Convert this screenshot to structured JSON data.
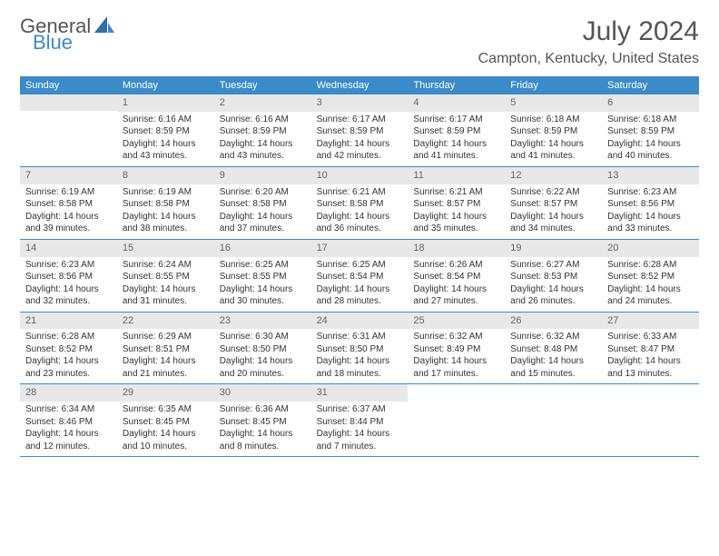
{
  "brand": {
    "w1": "General",
    "w2": "Blue"
  },
  "colors": {
    "header_bg": "#3b8bc9",
    "header_text": "#ffffff",
    "daynum_bg": "#e8e8e8",
    "daynum_text": "#666666",
    "body_text": "#333333",
    "title_text": "#555555",
    "row_border": "#3b8bc9",
    "page_bg": "#ffffff"
  },
  "typography": {
    "title_pt": 30,
    "location_pt": 16,
    "weekday_pt": 11,
    "daynum_pt": 11,
    "body_pt": 10
  },
  "title": "July 2024",
  "location": "Campton, Kentucky, United States",
  "weekdays": [
    "Sunday",
    "Monday",
    "Tuesday",
    "Wednesday",
    "Thursday",
    "Friday",
    "Saturday"
  ],
  "layout": {
    "cols": 7,
    "rows": 5,
    "first_day_col": 1,
    "days_in_month": 31
  },
  "days": [
    {
      "n": "1",
      "sr": "Sunrise: 6:16 AM",
      "ss": "Sunset: 8:59 PM",
      "dl": "Daylight: 14 hours and 43 minutes."
    },
    {
      "n": "2",
      "sr": "Sunrise: 6:16 AM",
      "ss": "Sunset: 8:59 PM",
      "dl": "Daylight: 14 hours and 43 minutes."
    },
    {
      "n": "3",
      "sr": "Sunrise: 6:17 AM",
      "ss": "Sunset: 8:59 PM",
      "dl": "Daylight: 14 hours and 42 minutes."
    },
    {
      "n": "4",
      "sr": "Sunrise: 6:17 AM",
      "ss": "Sunset: 8:59 PM",
      "dl": "Daylight: 14 hours and 41 minutes."
    },
    {
      "n": "5",
      "sr": "Sunrise: 6:18 AM",
      "ss": "Sunset: 8:59 PM",
      "dl": "Daylight: 14 hours and 41 minutes."
    },
    {
      "n": "6",
      "sr": "Sunrise: 6:18 AM",
      "ss": "Sunset: 8:59 PM",
      "dl": "Daylight: 14 hours and 40 minutes."
    },
    {
      "n": "7",
      "sr": "Sunrise: 6:19 AM",
      "ss": "Sunset: 8:58 PM",
      "dl": "Daylight: 14 hours and 39 minutes."
    },
    {
      "n": "8",
      "sr": "Sunrise: 6:19 AM",
      "ss": "Sunset: 8:58 PM",
      "dl": "Daylight: 14 hours and 38 minutes."
    },
    {
      "n": "9",
      "sr": "Sunrise: 6:20 AM",
      "ss": "Sunset: 8:58 PM",
      "dl": "Daylight: 14 hours and 37 minutes."
    },
    {
      "n": "10",
      "sr": "Sunrise: 6:21 AM",
      "ss": "Sunset: 8:58 PM",
      "dl": "Daylight: 14 hours and 36 minutes."
    },
    {
      "n": "11",
      "sr": "Sunrise: 6:21 AM",
      "ss": "Sunset: 8:57 PM",
      "dl": "Daylight: 14 hours and 35 minutes."
    },
    {
      "n": "12",
      "sr": "Sunrise: 6:22 AM",
      "ss": "Sunset: 8:57 PM",
      "dl": "Daylight: 14 hours and 34 minutes."
    },
    {
      "n": "13",
      "sr": "Sunrise: 6:23 AM",
      "ss": "Sunset: 8:56 PM",
      "dl": "Daylight: 14 hours and 33 minutes."
    },
    {
      "n": "14",
      "sr": "Sunrise: 6:23 AM",
      "ss": "Sunset: 8:56 PM",
      "dl": "Daylight: 14 hours and 32 minutes."
    },
    {
      "n": "15",
      "sr": "Sunrise: 6:24 AM",
      "ss": "Sunset: 8:55 PM",
      "dl": "Daylight: 14 hours and 31 minutes."
    },
    {
      "n": "16",
      "sr": "Sunrise: 6:25 AM",
      "ss": "Sunset: 8:55 PM",
      "dl": "Daylight: 14 hours and 30 minutes."
    },
    {
      "n": "17",
      "sr": "Sunrise: 6:25 AM",
      "ss": "Sunset: 8:54 PM",
      "dl": "Daylight: 14 hours and 28 minutes."
    },
    {
      "n": "18",
      "sr": "Sunrise: 6:26 AM",
      "ss": "Sunset: 8:54 PM",
      "dl": "Daylight: 14 hours and 27 minutes."
    },
    {
      "n": "19",
      "sr": "Sunrise: 6:27 AM",
      "ss": "Sunset: 8:53 PM",
      "dl": "Daylight: 14 hours and 26 minutes."
    },
    {
      "n": "20",
      "sr": "Sunrise: 6:28 AM",
      "ss": "Sunset: 8:52 PM",
      "dl": "Daylight: 14 hours and 24 minutes."
    },
    {
      "n": "21",
      "sr": "Sunrise: 6:28 AM",
      "ss": "Sunset: 8:52 PM",
      "dl": "Daylight: 14 hours and 23 minutes."
    },
    {
      "n": "22",
      "sr": "Sunrise: 6:29 AM",
      "ss": "Sunset: 8:51 PM",
      "dl": "Daylight: 14 hours and 21 minutes."
    },
    {
      "n": "23",
      "sr": "Sunrise: 6:30 AM",
      "ss": "Sunset: 8:50 PM",
      "dl": "Daylight: 14 hours and 20 minutes."
    },
    {
      "n": "24",
      "sr": "Sunrise: 6:31 AM",
      "ss": "Sunset: 8:50 PM",
      "dl": "Daylight: 14 hours and 18 minutes."
    },
    {
      "n": "25",
      "sr": "Sunrise: 6:32 AM",
      "ss": "Sunset: 8:49 PM",
      "dl": "Daylight: 14 hours and 17 minutes."
    },
    {
      "n": "26",
      "sr": "Sunrise: 6:32 AM",
      "ss": "Sunset: 8:48 PM",
      "dl": "Daylight: 14 hours and 15 minutes."
    },
    {
      "n": "27",
      "sr": "Sunrise: 6:33 AM",
      "ss": "Sunset: 8:47 PM",
      "dl": "Daylight: 14 hours and 13 minutes."
    },
    {
      "n": "28",
      "sr": "Sunrise: 6:34 AM",
      "ss": "Sunset: 8:46 PM",
      "dl": "Daylight: 14 hours and 12 minutes."
    },
    {
      "n": "29",
      "sr": "Sunrise: 6:35 AM",
      "ss": "Sunset: 8:45 PM",
      "dl": "Daylight: 14 hours and 10 minutes."
    },
    {
      "n": "30",
      "sr": "Sunrise: 6:36 AM",
      "ss": "Sunset: 8:45 PM",
      "dl": "Daylight: 14 hours and 8 minutes."
    },
    {
      "n": "31",
      "sr": "Sunrise: 6:37 AM",
      "ss": "Sunset: 8:44 PM",
      "dl": "Daylight: 14 hours and 7 minutes."
    }
  ]
}
